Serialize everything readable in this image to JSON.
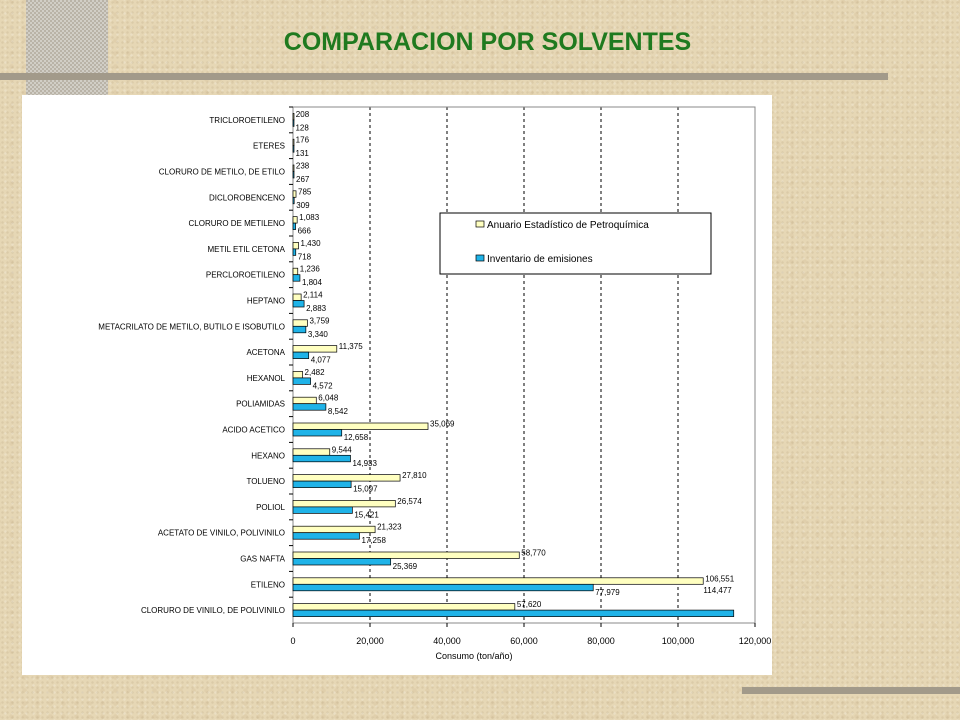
{
  "title": "COMPARACION POR SOLVENTES",
  "chart_data": {
    "type": "bar",
    "orientation": "horizontal",
    "categories": [
      "TRICLOROETILENO",
      "ETERES",
      "CLORURO DE METILO, DE ETILO",
      "DICLOROBENCENO",
      "CLORURO DE METILENO",
      "METIL ETIL CETONA",
      "PERCLOROETILENO",
      "HEPTANO",
      "METACRILATO DE METILO, BUTILO E ISOBUTILO",
      "ACETONA",
      "HEXANOL",
      "POLIAMIDAS",
      "ACIDO ACETICO",
      "HEXANO",
      "TOLUENO",
      "POLIOL",
      "ACETATO DE VINILO, POLIVINILO",
      "GAS NAFTA",
      "ETILENO",
      "CLORURO DE VINILO, DE POLIVINILO"
    ],
    "series": [
      {
        "name": "Anuario Estadístico de Petroquímica",
        "color": "#ffffc0",
        "values": [
          208,
          176,
          238,
          785,
          1083,
          1430,
          1236,
          2114,
          3759,
          11375,
          2482,
          6048,
          35069,
          9544,
          27810,
          26574,
          21323,
          58770,
          106551,
          57620
        ],
        "labels": [
          "208",
          "176",
          "238",
          "785",
          "1,083",
          "1,430",
          "1,236",
          "2,114",
          "3,759",
          "11,375",
          "2,482",
          "6,048",
          "35,069",
          "9,544",
          "27,810",
          "26,574",
          "21,323",
          "58,770",
          "106,551",
          "57,620"
        ]
      },
      {
        "name": "Inventario de emisiones",
        "color": "#1fb3e8",
        "values": [
          128,
          131,
          267,
          309,
          666,
          718,
          1804,
          2883,
          3340,
          4077,
          4572,
          8542,
          12658,
          14933,
          15097,
          15421,
          17258,
          25369,
          77979,
          114477
        ],
        "labels": [
          "128",
          "131",
          "267",
          "309",
          "666",
          "718",
          "1,804",
          "2,883",
          "3,340",
          "4,077",
          "4,572",
          "8,542",
          "12,658",
          "14,933",
          "15,097",
          "15,421",
          "17,258",
          "25,369",
          "77,979",
          "114,477"
        ]
      }
    ],
    "xlabel": "Consumo (ton/año)",
    "xlim": [
      0,
      120000
    ],
    "xticks": [
      0,
      20000,
      40000,
      60000,
      80000,
      100000,
      120000
    ],
    "xtick_labels": [
      "0",
      "20,000",
      "40,000",
      "60,000",
      "80,000",
      "100,000",
      "120,000"
    ],
    "grid": "vertical dashed",
    "legend_position": "upper-right, inside plot"
  }
}
